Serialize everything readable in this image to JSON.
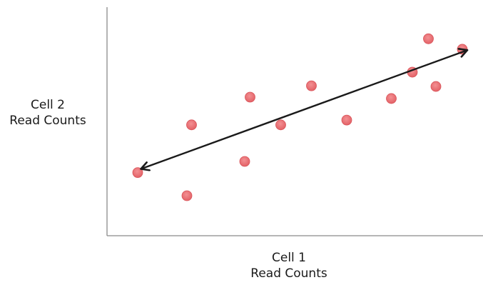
{
  "chart_data": {
    "type": "scatter",
    "title": "",
    "xlabel": "Cell 1 Read Counts",
    "ylabel": "Cell 2 Read Counts",
    "xlabel_lines": [
      "Cell 1",
      "Read Counts"
    ],
    "ylabel_lines": [
      "Cell 2",
      "Read Counts"
    ],
    "ticks_shown": false,
    "grid": false,
    "legend": "none",
    "xlim": [
      0,
      100
    ],
    "ylim": [
      0,
      100
    ],
    "series": [
      {
        "x": [
          8.6,
          22.4,
          23.7,
          38.6,
          40.1,
          48.7,
          57.3,
          67.2,
          79.7,
          85.6,
          90.1,
          92.2,
          99.6
        ],
        "y": [
          27.8,
          17.6,
          48.8,
          32.7,
          61.0,
          48.8,
          66.0,
          50.9,
          60.4,
          72.0,
          86.7,
          65.7,
          82.1
        ],
        "color": "#ec6a6e"
      }
    ],
    "trend_arrow": {
      "from": [
        9.5,
        29.4
      ],
      "to": [
        101.0,
        81.7
      ],
      "color": "#1a1a1a",
      "double_headed": true
    },
    "axis_color": "#8a8a8a"
  }
}
